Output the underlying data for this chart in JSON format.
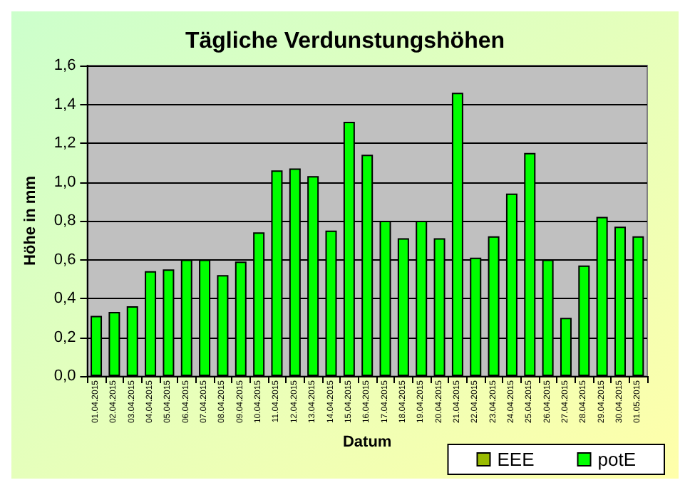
{
  "chart_data": {
    "type": "bar",
    "title": "Tägliche Verdunstungshöhen",
    "xlabel": "Datum",
    "ylabel": "Höhe in mm",
    "categories": [
      "01.04.2015",
      "02.04.2015",
      "03.04.2015",
      "04.04.2015",
      "05.04.2015",
      "06.04.2015",
      "07.04.2015",
      "08.04.2015",
      "09.04.2015",
      "10.04.2015",
      "11.04.2015",
      "12.04.2015",
      "13.04.2015",
      "14.04.2015",
      "15.04.2015",
      "16.04.2015",
      "17.04.2015",
      "18.04.2015",
      "19.04.2015",
      "20.04.2015",
      "21.04.2015",
      "22.04.2015",
      "23.04.2015",
      "24.04.2015",
      "25.04.2015",
      "26.04.2015",
      "27.04.2015",
      "28.04.2015",
      "29.04.2015",
      "30.04.2015",
      "01.05.2015"
    ],
    "series": [
      {
        "name": "EEE",
        "color": "#99bb00",
        "values": [
          null,
          null,
          null,
          null,
          null,
          null,
          null,
          null,
          null,
          null,
          null,
          null,
          null,
          null,
          null,
          null,
          null,
          null,
          null,
          null,
          null,
          null,
          null,
          null,
          null,
          null,
          null,
          null,
          null,
          null,
          null
        ]
      },
      {
        "name": "potE",
        "color": "#00ff00",
        "values": [
          0.31,
          0.33,
          0.36,
          0.54,
          0.55,
          0.6,
          0.6,
          0.52,
          0.59,
          0.74,
          1.06,
          1.07,
          1.03,
          0.75,
          1.31,
          1.14,
          0.8,
          0.71,
          0.8,
          0.71,
          1.46,
          0.61,
          0.72,
          0.94,
          1.15,
          0.6,
          0.3,
          0.57,
          0.82,
          0.77,
          0.72
        ]
      }
    ],
    "ylim": [
      0,
      1.6
    ],
    "yticks": [
      {
        "value": 0,
        "label": "0,0"
      },
      {
        "value": 0.2,
        "label": "0,2"
      },
      {
        "value": 0.4,
        "label": "0,4"
      },
      {
        "value": 0.6,
        "label": "0,6"
      },
      {
        "value": 0.8,
        "label": "0,8"
      },
      {
        "value": 1,
        "label": "1,0"
      },
      {
        "value": 1.2,
        "label": "1,2"
      },
      {
        "value": 1.4,
        "label": "1,4"
      },
      {
        "value": 1.6,
        "label": "1,6"
      }
    ],
    "grid": "y",
    "legend": "bottom right"
  }
}
